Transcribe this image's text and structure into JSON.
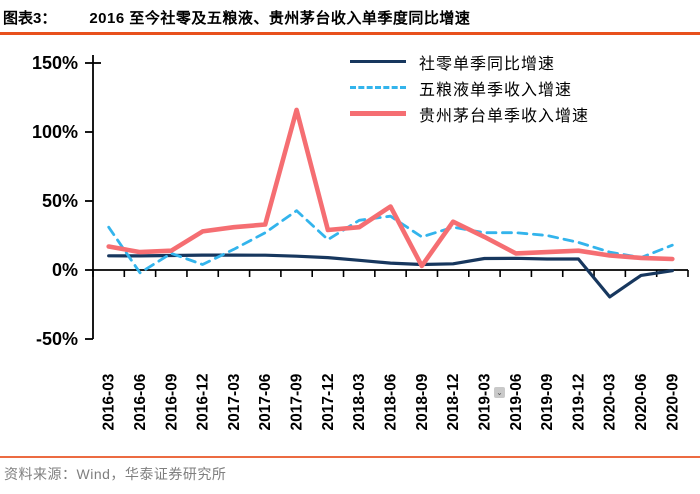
{
  "header": {
    "tag": "图表3：",
    "title": "2016 至今社零及五粮液、贵州茅台收入单季度同比增速"
  },
  "footer": {
    "source": "资料来源：Wind，华泰证券研究所"
  },
  "colors": {
    "retail": "#17375e",
    "wuliangye": "#33b4ec",
    "moutai": "#f56e72",
    "axis": "#000000",
    "title_rule": "#e8501c",
    "footer_rule": "#ec6b41",
    "footer_text": "#7f7f7f"
  },
  "icons": {
    "chevron_down": "⌄"
  },
  "chart_data": {
    "type": "line",
    "title": "2016 至今社零及五粮液、贵州茅台收入单季度同比增速",
    "grid": false,
    "legend_position": "top-center",
    "ylim": [
      -50,
      150
    ],
    "y_tick_labels": [
      "150%",
      "100%",
      "50%",
      "0%",
      "-50%"
    ],
    "y_tick_values": [
      150,
      100,
      50,
      0,
      -50
    ],
    "categories": [
      "2016-03",
      "2016-06",
      "2016-09",
      "2016-12",
      "2017-03",
      "2017-06",
      "2017-09",
      "2017-12",
      "2018-03",
      "2018-06",
      "2018-09",
      "2018-12",
      "2019-03",
      "2019-06",
      "2019-09",
      "2019-12",
      "2020-03",
      "2020-06",
      "2020-09"
    ],
    "series": [
      {
        "name": "社零单季同比增速",
        "style": "solid",
        "color_key": "retail",
        "width": 3.2,
        "values": [
          10.3,
          10.2,
          10.5,
          10.8,
          10.8,
          10.7,
          10.0,
          9.0,
          7.0,
          5.0,
          4.0,
          4.5,
          8.3,
          8.5,
          8.0,
          8.0,
          -19.5,
          -3.9,
          -0.5
        ]
      },
      {
        "name": "五粮液单季收入增速",
        "style": "dashed",
        "color_key": "wuliangye",
        "width": 2.8,
        "values": [
          31,
          -2,
          12,
          4,
          15,
          27,
          43,
          22,
          36,
          39,
          24,
          31,
          27,
          27,
          25,
          20,
          13,
          9,
          18
        ]
      },
      {
        "name": "贵州茅台单季收入增速",
        "style": "solid",
        "color_key": "moutai",
        "width": 4.6,
        "values": [
          17,
          13,
          14,
          28,
          31,
          33,
          116,
          29,
          31,
          46,
          3,
          35,
          24,
          12,
          13,
          14,
          10.5,
          8.8,
          8
        ]
      }
    ]
  }
}
